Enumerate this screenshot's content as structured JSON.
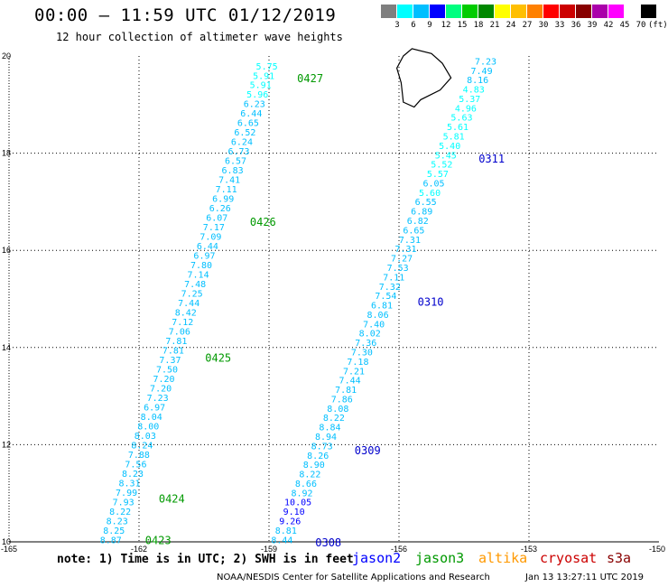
{
  "header": {
    "title": "00:00 – 11:59 UTC 01/12/2019",
    "subtitle": "12 hour collection of altimeter wave heights"
  },
  "legend": {
    "colors": [
      "#7f7f7f",
      "#00ffff",
      "#00bfff",
      "#0000ff",
      "#00ff7f",
      "#00cc00",
      "#008800",
      "#ffff00",
      "#ffbf00",
      "#ff8000",
      "#ff0000",
      "#cc0000",
      "#880000",
      "#aa00aa",
      "#ff00ff",
      "#ffffff",
      "#000000"
    ],
    "labels": [
      "3",
      "6",
      "9",
      "12",
      "15",
      "18",
      "21",
      "24",
      "27",
      "30",
      "33",
      "36",
      "39",
      "42",
      "45",
      "70"
    ],
    "unit": "(ft)"
  },
  "axes": {
    "x_ticks": [
      "-165",
      "-162",
      "-159",
      "-156",
      "-153",
      "-150"
    ],
    "y_ticks": [
      "10",
      "12",
      "14",
      "16",
      "18",
      "20"
    ],
    "xlim": [
      -165,
      -150
    ],
    "ylim": [
      10,
      20
    ]
  },
  "tracks": [
    {
      "satellite": "jason3",
      "start": [
        -162.65,
        10.05
      ],
      "end": [
        -159.05,
        19.8
      ],
      "values": [
        "8.87",
        "8.25",
        "8.23",
        "8.22",
        "7.93",
        "7.99",
        "8.31",
        "8.23",
        "7.56",
        "7.88",
        "8.24",
        "8.03",
        "8.00",
        "8.04",
        "6.97",
        "7.23",
        "7.20",
        "7.20",
        "7.50",
        "7.37",
        "7.81",
        "7.81",
        "7.06",
        "7.12",
        "8.42",
        "7.44",
        "7.25",
        "7.48",
        "7.14",
        "7.80",
        "6.97",
        "6.44",
        "7.09",
        "7.17",
        "6.07",
        "6.26",
        "6.99",
        "7.11",
        "7.41",
        "6.83",
        "6.57",
        "6.73",
        "6.24",
        "6.52",
        "6.65",
        "6.44",
        "6.23",
        "5.96",
        "5.91",
        "5.91",
        "5.75"
      ],
      "times": [
        {
          "label": "0423",
          "lat": 10.05
        },
        {
          "label": "0424",
          "lat": 10.9
        },
        {
          "label": "0425",
          "lat": 13.8
        },
        {
          "label": "0426",
          "lat": 16.6
        },
        {
          "label": "0427",
          "lat": 19.55
        }
      ]
    },
    {
      "satellite": "jason2",
      "start": [
        -158.7,
        10.05
      ],
      "end": [
        -154.0,
        19.9
      ],
      "values": [
        "8.44",
        "8.81",
        "9.26",
        "9.10",
        "10.05",
        "8.92",
        "8.66",
        "8.22",
        "8.90",
        "8.26",
        "8.73",
        "8.94",
        "8.84",
        "8.22",
        "8.08",
        "7.86",
        "7.81",
        "7.44",
        "7.21",
        "7.18",
        "7.30",
        "7.36",
        "8.02",
        "7.40",
        "8.06",
        "6.81",
        "7.54",
        "7.32",
        "7.11",
        "7.53",
        "7.27",
        "7.31",
        "7.31",
        "6.65",
        "6.82",
        "6.89",
        "6.55",
        "5.60",
        "6.05",
        "5.57",
        "5.52",
        "5.45",
        "5.40",
        "5.81",
        "5.61",
        "5.63",
        "4.96",
        "5.37",
        "4.83",
        "8.16",
        "7.49",
        "7.23"
      ],
      "times": [
        {
          "label": "0308",
          "lat": 10.0
        },
        {
          "label": "0309",
          "lat": 11.9
        },
        {
          "label": "0310",
          "lat": 14.95
        },
        {
          "label": "0311",
          "lat": 17.9
        }
      ]
    }
  ],
  "footer": {
    "note": "note: 1) Time is in UTC; 2) SWH is in feet",
    "satellites": [
      {
        "name": "jason2",
        "color": "#0000ff"
      },
      {
        "name": "jason3",
        "color": "#009900"
      },
      {
        "name": "altika",
        "color": "#ff9900"
      },
      {
        "name": "cryosat",
        "color": "#cc0000"
      },
      {
        "name": "s3a",
        "color": "#880000"
      }
    ],
    "credit": "NOAA/NESDIS Center for Satellite Applications and Research",
    "timestamp": "Jan 13 13:27:11 UTC 2019"
  }
}
